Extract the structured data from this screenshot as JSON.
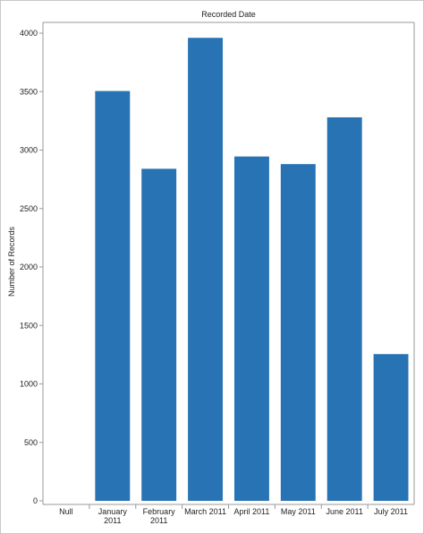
{
  "chart_data": {
    "type": "bar",
    "title": "Recorded Date",
    "ylabel": "Number of Records",
    "xlabel": "",
    "categories": [
      [
        "Null"
      ],
      [
        "January",
        "2011"
      ],
      [
        "February",
        "2011"
      ],
      [
        "March 2011"
      ],
      [
        "April 2011"
      ],
      [
        "May 2011"
      ],
      [
        "June 2011"
      ],
      [
        "July 2011"
      ]
    ],
    "values": [
      0,
      3505,
      2840,
      3960,
      2945,
      2880,
      3280,
      1255
    ],
    "ylim": [
      0,
      4000
    ],
    "yticks": [
      0,
      500,
      1000,
      1500,
      2000,
      2500,
      3000,
      3500,
      4000
    ],
    "grid": false,
    "colors": {
      "bar": "#2773b3",
      "axis": "#9a9a9a",
      "text": "#222222"
    }
  }
}
